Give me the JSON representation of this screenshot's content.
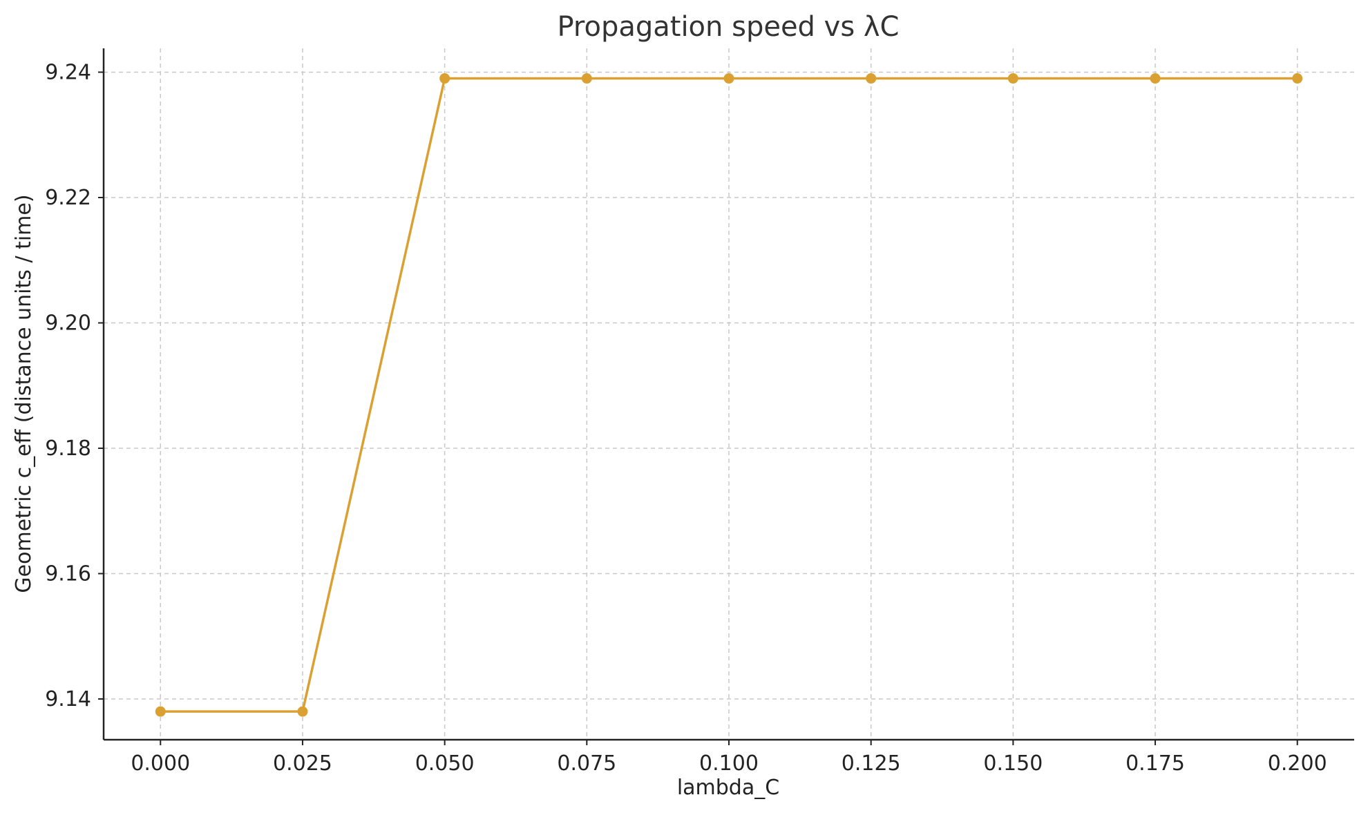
{
  "chart_data": {
    "type": "line",
    "title": "Propagation speed vs λC",
    "xlabel": "lambda_C",
    "ylabel": "Geometric c_eff (distance units / time)",
    "xlim": [
      -0.01,
      0.21
    ],
    "ylim": [
      9.1335,
      9.2438
    ],
    "xticks": [
      0.0,
      0.025,
      0.05,
      0.075,
      0.1,
      0.125,
      0.15,
      0.175,
      0.2
    ],
    "xtick_labels": [
      "0.000",
      "0.025",
      "0.050",
      "0.075",
      "0.100",
      "0.125",
      "0.150",
      "0.175",
      "0.200"
    ],
    "yticks": [
      9.14,
      9.16,
      9.18,
      9.2,
      9.22,
      9.24
    ],
    "ytick_labels": [
      "9.14",
      "9.16",
      "9.18",
      "9.20",
      "9.22",
      "9.24"
    ],
    "grid": true,
    "color": "#DAA032",
    "series": [
      {
        "x": [
          0.0,
          0.025,
          0.05,
          0.075,
          0.1,
          0.125,
          0.15,
          0.175,
          0.2
        ],
        "y": [
          9.138,
          9.138,
          9.239,
          9.239,
          9.239,
          9.239,
          9.239,
          9.239,
          9.239
        ]
      }
    ]
  }
}
